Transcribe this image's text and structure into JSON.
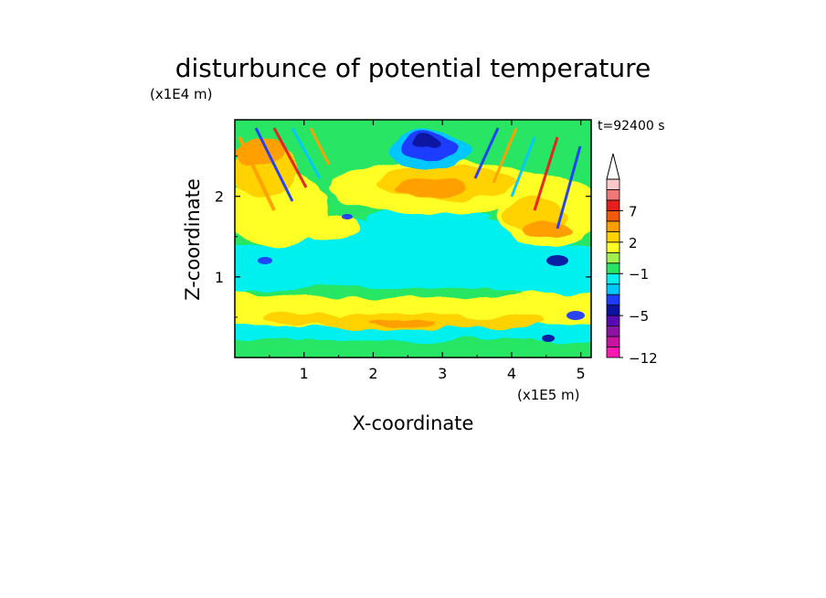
{
  "chart_data": {
    "type": "heatmap",
    "title": "disturbunce of potential temperature",
    "xlabel": "X-coordinate",
    "ylabel": "Z-coordinate",
    "x_unit": "(x1E5 m)",
    "y_unit": "(x1E4 m)",
    "time_label": "t=92400 s",
    "xlim": [
      0,
      5.15
    ],
    "ylim": [
      0,
      2.95
    ],
    "x_ticks": [
      "1",
      "2",
      "3",
      "4",
      "5"
    ],
    "y_ticks": [
      "1",
      "2"
    ],
    "legend": "right",
    "colorbar": {
      "labels": [
        "7",
        "2",
        "−1",
        "−5",
        "−12"
      ],
      "levels": [
        -12,
        -10,
        -8,
        -6,
        -5,
        -4,
        -3,
        -2,
        -1,
        0,
        1,
        2,
        3,
        5,
        7,
        9,
        11
      ],
      "colors": [
        "#ff19b4",
        "#c814a0",
        "#8c14a0",
        "#5a0ab4",
        "#0a14a0",
        "#1e3cff",
        "#00c8ff",
        "#00f0f0",
        "#28e664",
        "#a0f050",
        "#ffff28",
        "#ffd200",
        "#ffa000",
        "#f05a0a",
        "#e61e1e",
        "#f07878",
        "#ffc8c8"
      ],
      "overflow_arrow": "top"
    },
    "field_summary": [
      {
        "x": 0.5,
        "z": 0.2,
        "value": -1
      },
      {
        "x": 1.5,
        "z": 0.5,
        "value": 2
      },
      {
        "x": 2.5,
        "z": 0.45,
        "value": 3
      },
      {
        "x": 3.8,
        "z": 0.4,
        "value": 2
      },
      {
        "x": 2.5,
        "z": 1.1,
        "value": -1
      },
      {
        "x": 1.0,
        "z": 1.6,
        "value": 1
      },
      {
        "x": 2.8,
        "z": 2.2,
        "value": 3
      },
      {
        "x": 2.9,
        "z": 2.65,
        "value": -5
      },
      {
        "x": 0.4,
        "z": 2.5,
        "value": 3
      },
      {
        "x": 4.6,
        "z": 1.4,
        "value": -5
      },
      {
        "x": 4.3,
        "z": 2.2,
        "value": 3
      }
    ]
  }
}
